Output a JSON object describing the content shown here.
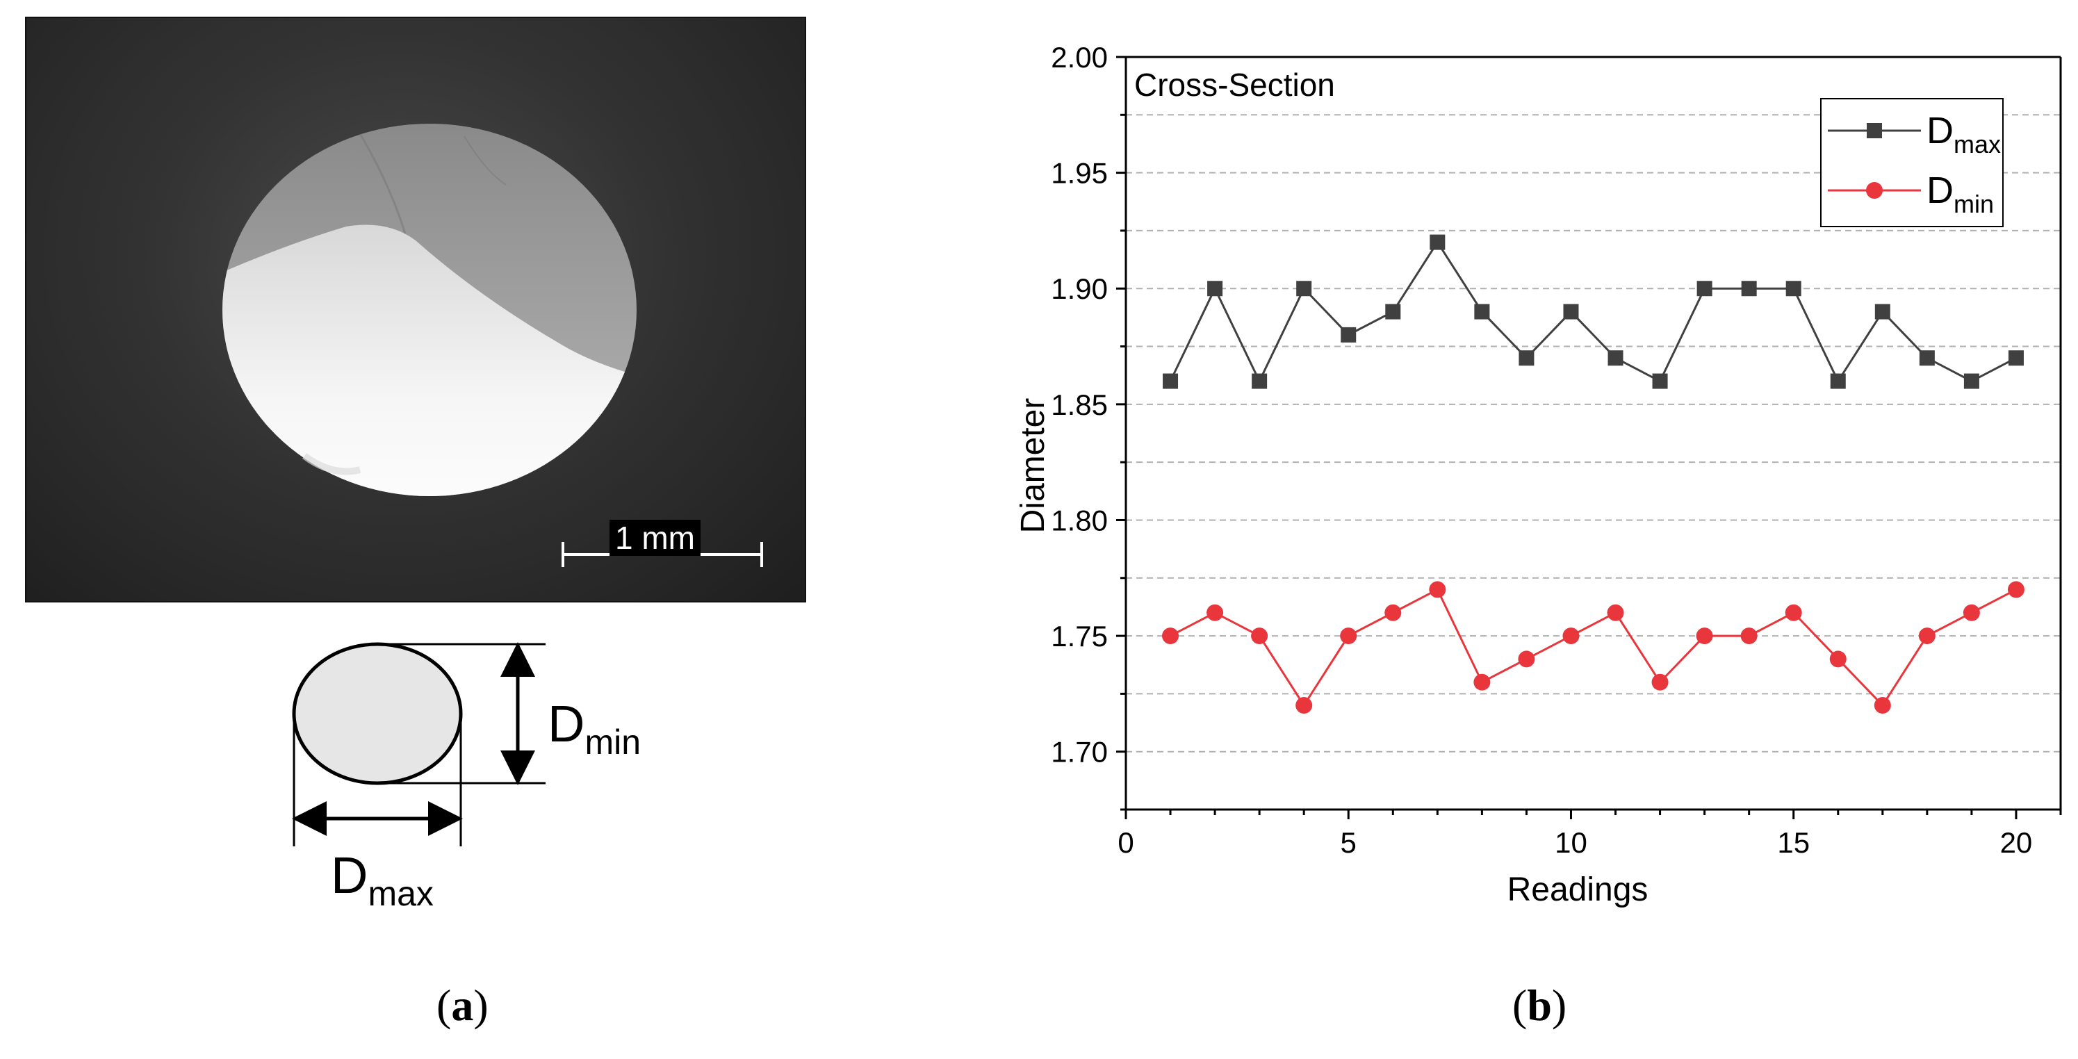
{
  "panel_a": {
    "scale_bar_label": "1 mm",
    "schematic": {
      "dmin_main": "D",
      "dmin_sub": "min",
      "dmax_main": "D",
      "dmax_sub": "max"
    },
    "caption": "a"
  },
  "panel_b": {
    "caption": "b"
  },
  "colors": {
    "dmax_series": "#404040",
    "dmin_series": "#e8363c",
    "grid": "#b0b0b0"
  },
  "chart_data": {
    "type": "line",
    "title": "Cross-Section",
    "xlabel": "Readings",
    "ylabel": "Diameter",
    "xlim": [
      0,
      21
    ],
    "ylim": [
      1.675,
      2.0
    ],
    "x_ticks": [
      "0",
      "5",
      "10",
      "15",
      "20"
    ],
    "y_ticks": [
      "1.70",
      "1.75",
      "1.80",
      "1.85",
      "1.90",
      "1.95",
      "2.00"
    ],
    "grid": "dashed horizontal",
    "legend_position": "top-right",
    "x": [
      1,
      2,
      3,
      4,
      5,
      6,
      7,
      8,
      9,
      10,
      11,
      12,
      13,
      14,
      15,
      16,
      17,
      18,
      19,
      20
    ],
    "series": [
      {
        "name": "D",
        "subscript": "max",
        "marker": "square",
        "color": "#404040",
        "values": [
          1.86,
          1.9,
          1.86,
          1.9,
          1.88,
          1.89,
          1.92,
          1.89,
          1.87,
          1.89,
          1.87,
          1.86,
          1.9,
          1.9,
          1.9,
          1.86,
          1.89,
          1.87,
          1.86,
          1.87
        ]
      },
      {
        "name": "D",
        "subscript": "min",
        "marker": "circle",
        "color": "#e8363c",
        "values": [
          1.75,
          1.76,
          1.75,
          1.72,
          1.75,
          1.76,
          1.77,
          1.73,
          1.74,
          1.75,
          1.76,
          1.73,
          1.75,
          1.75,
          1.76,
          1.74,
          1.72,
          1.75,
          1.76,
          1.77
        ]
      }
    ]
  }
}
